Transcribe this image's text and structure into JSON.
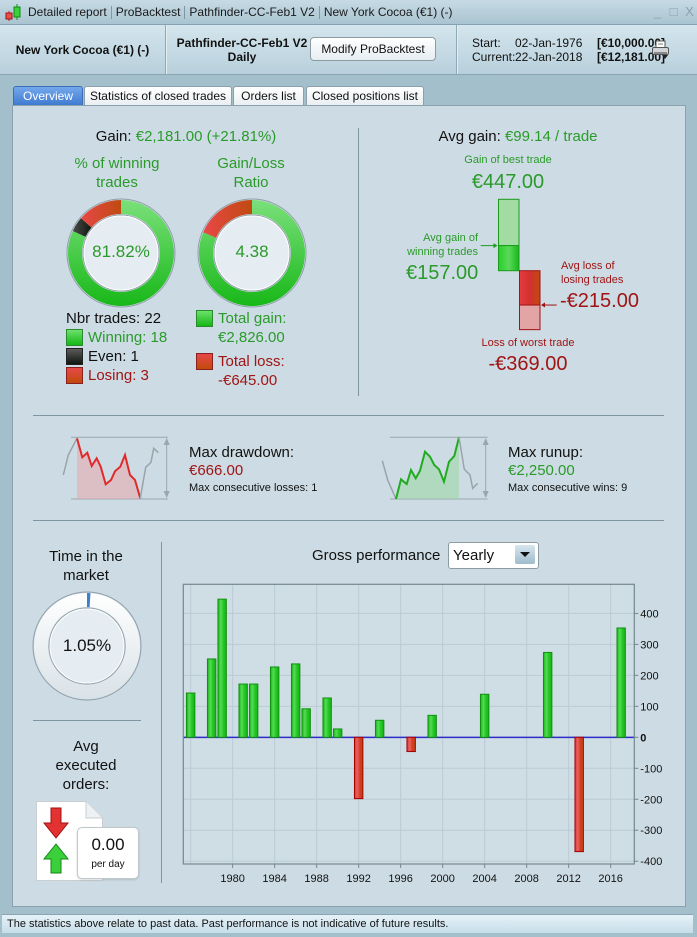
{
  "window": {
    "title_segments": [
      "Detailed report",
      "ProBacktest",
      "Pathfinder-CC-Feb1 V2",
      "New York Cocoa (€1) (-)"
    ],
    "controls": {
      "minimize": "_",
      "maximize": "□",
      "close": "X"
    }
  },
  "header": {
    "instrument": "New York Cocoa (€1) (-)",
    "system_name": "Pathfinder-CC-Feb1 V2",
    "timeframe": "Daily",
    "modify_button": "Modify ProBacktest",
    "start_label": "Start:",
    "start_date": "02-Jan-1976",
    "start_capital": "[€10,000.00]",
    "current_label": "Current:",
    "current_date": "22-Jan-2018",
    "current_capital": "[€12,181.00]",
    "print_icon": "printer-icon"
  },
  "tabs": [
    {
      "label": "Overview",
      "active": true
    },
    {
      "label": "Statistics of closed trades",
      "active": false
    },
    {
      "label": "Orders list",
      "active": false
    },
    {
      "label": "Closed positions list",
      "active": false
    }
  ],
  "overview": {
    "gain": {
      "label": "Gain:",
      "value": "€2,181.00 (+21.81%)"
    },
    "winning_pct": {
      "title_line1": "% of winning",
      "title_line2": "trades",
      "value": "81.82%"
    },
    "gain_loss_ratio": {
      "title_line1": "Gain/Loss",
      "title_line2": "Ratio",
      "value": "4.38"
    },
    "trades": {
      "count_label": "Nbr trades: 22",
      "winning_label": "Winning: 18",
      "even_label": "Even: 1",
      "losing_label": "Losing: 3",
      "winning_count": 18,
      "even_count": 1,
      "losing_count": 3
    },
    "totals": {
      "gain_label": "Total gain:",
      "gain_value": "€2,826.00",
      "loss_label": "Total loss:",
      "loss_value": "-€645.00",
      "gain_amount": 2826,
      "loss_amount": 645
    },
    "avg_gain": {
      "label": "Avg gain:",
      "value": "€99.14 / trade"
    },
    "best_trade": {
      "label": "Gain of best trade",
      "value": "€447.00",
      "amount": 447
    },
    "avg_win": {
      "line1": "Avg gain of",
      "line2": "winning trades",
      "value": "€157.00",
      "amount": 157
    },
    "avg_loss": {
      "line1": "Avg loss of",
      "line2": "losing trades",
      "value": "-€215.00",
      "amount": 215
    },
    "worst_trade": {
      "label": "Loss of worst trade",
      "value": "-€369.00",
      "amount": 369
    },
    "drawdown": {
      "label": "Max drawdown:",
      "value": "€666.00",
      "sub": "Max consecutive losses: 1"
    },
    "runup": {
      "label": "Max runup:",
      "value": "€2,250.00",
      "sub": "Max consecutive wins: 9"
    },
    "time_in_market": {
      "line1": "Time in the",
      "line2": "market",
      "value": "1.05%",
      "fraction": 0.0105
    },
    "executed_orders": {
      "line1": "Avg",
      "line2": "executed",
      "line3": "orders:",
      "value": "0.00",
      "unit": "per day"
    },
    "gross_performance": {
      "label": "Gross performance",
      "period": "Yearly"
    }
  },
  "status_bar": "The statistics above relate to past data. Past performance is not indicative of future results.",
  "colors": {
    "positive_text": "#2a9a2a",
    "negative_text": "#a01414",
    "bar_positive": "#1fc41f",
    "bar_negative": "#d02a2a",
    "even": "#1c221c",
    "zero_line": "#2c2cc8",
    "time_in_market": "#3a7fd0",
    "active_tab": "#4a86d8"
  },
  "chart_data": {
    "type": "bar",
    "title": "Gross performance",
    "period": "Yearly",
    "x": [
      1976,
      1978,
      1979,
      1981,
      1982,
      1984,
      1986,
      1987,
      1989,
      1990,
      1992,
      1994,
      1997,
      1999,
      2004,
      2010,
      2013,
      2017
    ],
    "values": [
      143,
      253,
      446,
      172,
      172,
      227,
      237,
      92,
      127,
      27,
      -198,
      55,
      -46,
      71,
      139,
      274,
      -369,
      353
    ],
    "xlabel": "",
    "ylabel": "",
    "x_ticks": [
      1980,
      1984,
      1988,
      1992,
      1996,
      2000,
      2004,
      2008,
      2012,
      2016
    ],
    "x_grid": [
      1976,
      1980,
      1984,
      1988,
      1992,
      1996,
      2000,
      2004,
      2008,
      2012,
      2016
    ],
    "y_ticks": [
      400,
      300,
      200,
      100,
      0,
      -100,
      -200,
      -300,
      -400
    ],
    "xlim": [
      1975.3,
      2018.25
    ],
    "ylim": [
      -409,
      494
    ],
    "grid": true,
    "legend": "none",
    "y_axis_side": "right"
  }
}
